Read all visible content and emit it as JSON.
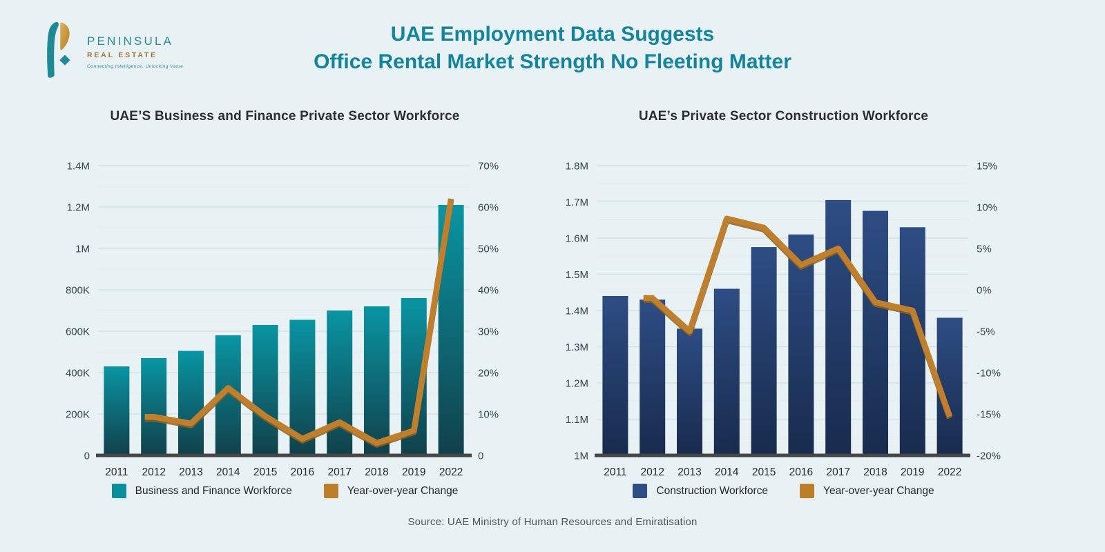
{
  "header": {
    "title_line1": "UAE Employment Data Suggests",
    "title_line2": "Office Rental Market Strength No Fleeting Matter",
    "logo": {
      "name": "PENINSULA",
      "subname": "REAL ESTATE",
      "tagline": "Connecting Intelligence. Unlocking Value."
    }
  },
  "footer": {
    "source": "Source: UAE Ministry of Human Resources and Emiratisation"
  },
  "colors": {
    "background": "#e8f2f4",
    "title_teal": "#14849a",
    "bar_teal_top": "#0995a3",
    "bar_teal_bottom": "#11404a",
    "bar_navy_top": "#2d4d84",
    "bar_navy_bottom": "#182b4d",
    "line_orange": "#bf7f2c",
    "axis_line": "#454545"
  },
  "chart_data": [
    {
      "type": "bar",
      "subtype": "combo-bar-line",
      "title": "UAE’S Business and Finance Private Sector Workforce",
      "categories": [
        "2011",
        "2012",
        "2013",
        "2014",
        "2015",
        "2016",
        "2017",
        "2018",
        "2019",
        "2022"
      ],
      "series": [
        {
          "name": "Business and Finance Workforce",
          "role": "bar",
          "axis": "left",
          "values": [
            430000,
            470000,
            505000,
            580000,
            630000,
            655000,
            700000,
            720000,
            760000,
            1210000
          ],
          "gradient": [
            "#0995a3",
            "#11404a"
          ]
        },
        {
          "name": "Year-over-year Change",
          "role": "line",
          "axis": "right",
          "values": [
            null,
            9.3,
            7.7,
            16.3,
            9.5,
            4,
            8,
            3,
            6,
            62
          ],
          "color": "#bf7f2c",
          "shadow_color": "#8f6220"
        }
      ],
      "left_axis": {
        "min": 0,
        "max": 1400000,
        "tick_step": 200000,
        "minor_step": 100000,
        "tick_labels": [
          "1.4M",
          "1.2M",
          "1M",
          "800K",
          "600K",
          "400K",
          "200K",
          "0"
        ]
      },
      "right_axis": {
        "min": 0,
        "max": 70,
        "tick_step": 10,
        "tick_labels": [
          "70%",
          "60%",
          "50%",
          "40%",
          "30%",
          "20%",
          "10%",
          "0"
        ]
      },
      "legend": [
        {
          "label": "Business and Finance Workforce",
          "color": "#0b8f9d"
        },
        {
          "label": "Year-over-year Change",
          "color": "#bd7e2a"
        }
      ]
    },
    {
      "type": "bar",
      "subtype": "combo-bar-line",
      "title": "UAE’s Private Sector Construction Workforce",
      "categories": [
        "2011",
        "2012",
        "2013",
        "2014",
        "2015",
        "2016",
        "2017",
        "2018",
        "2019",
        "2022"
      ],
      "series": [
        {
          "name": "Construction Workforce",
          "role": "bar",
          "axis": "left",
          "values": [
            1440000,
            1430000,
            1350000,
            1460000,
            1575000,
            1610000,
            1705000,
            1675000,
            1630000,
            1380000
          ],
          "gradient": [
            "#2d4d84",
            "#182b4d"
          ]
        },
        {
          "name": "Year-over-year Change",
          "role": "line",
          "axis": "right",
          "values": [
            null,
            -1,
            -5,
            8.6,
            7.5,
            3,
            5,
            -1.5,
            -2.5,
            -15.3
          ],
          "color": "#bf7f2c",
          "shadow_color": "#8f6220"
        }
      ],
      "left_axis": {
        "min": 1000000,
        "max": 1800000,
        "tick_step": 100000,
        "minor_step": 50000,
        "tick_labels": [
          "1.8M",
          "1.7M",
          "1.6M",
          "1.5M",
          "1.4M",
          "1.3M",
          "1.2M",
          "1.1M",
          "1M"
        ]
      },
      "right_axis": {
        "min": -20,
        "max": 15,
        "tick_step": 5,
        "tick_labels": [
          "15%",
          "10%",
          "5%",
          "0%",
          "-5%",
          "-10%",
          "-15%",
          "-20%"
        ]
      },
      "legend": [
        {
          "label": "Construction Workforce",
          "color": "#2d4d84"
        },
        {
          "label": "Year-over-year Change",
          "color": "#bd7e2a"
        }
      ]
    }
  ]
}
